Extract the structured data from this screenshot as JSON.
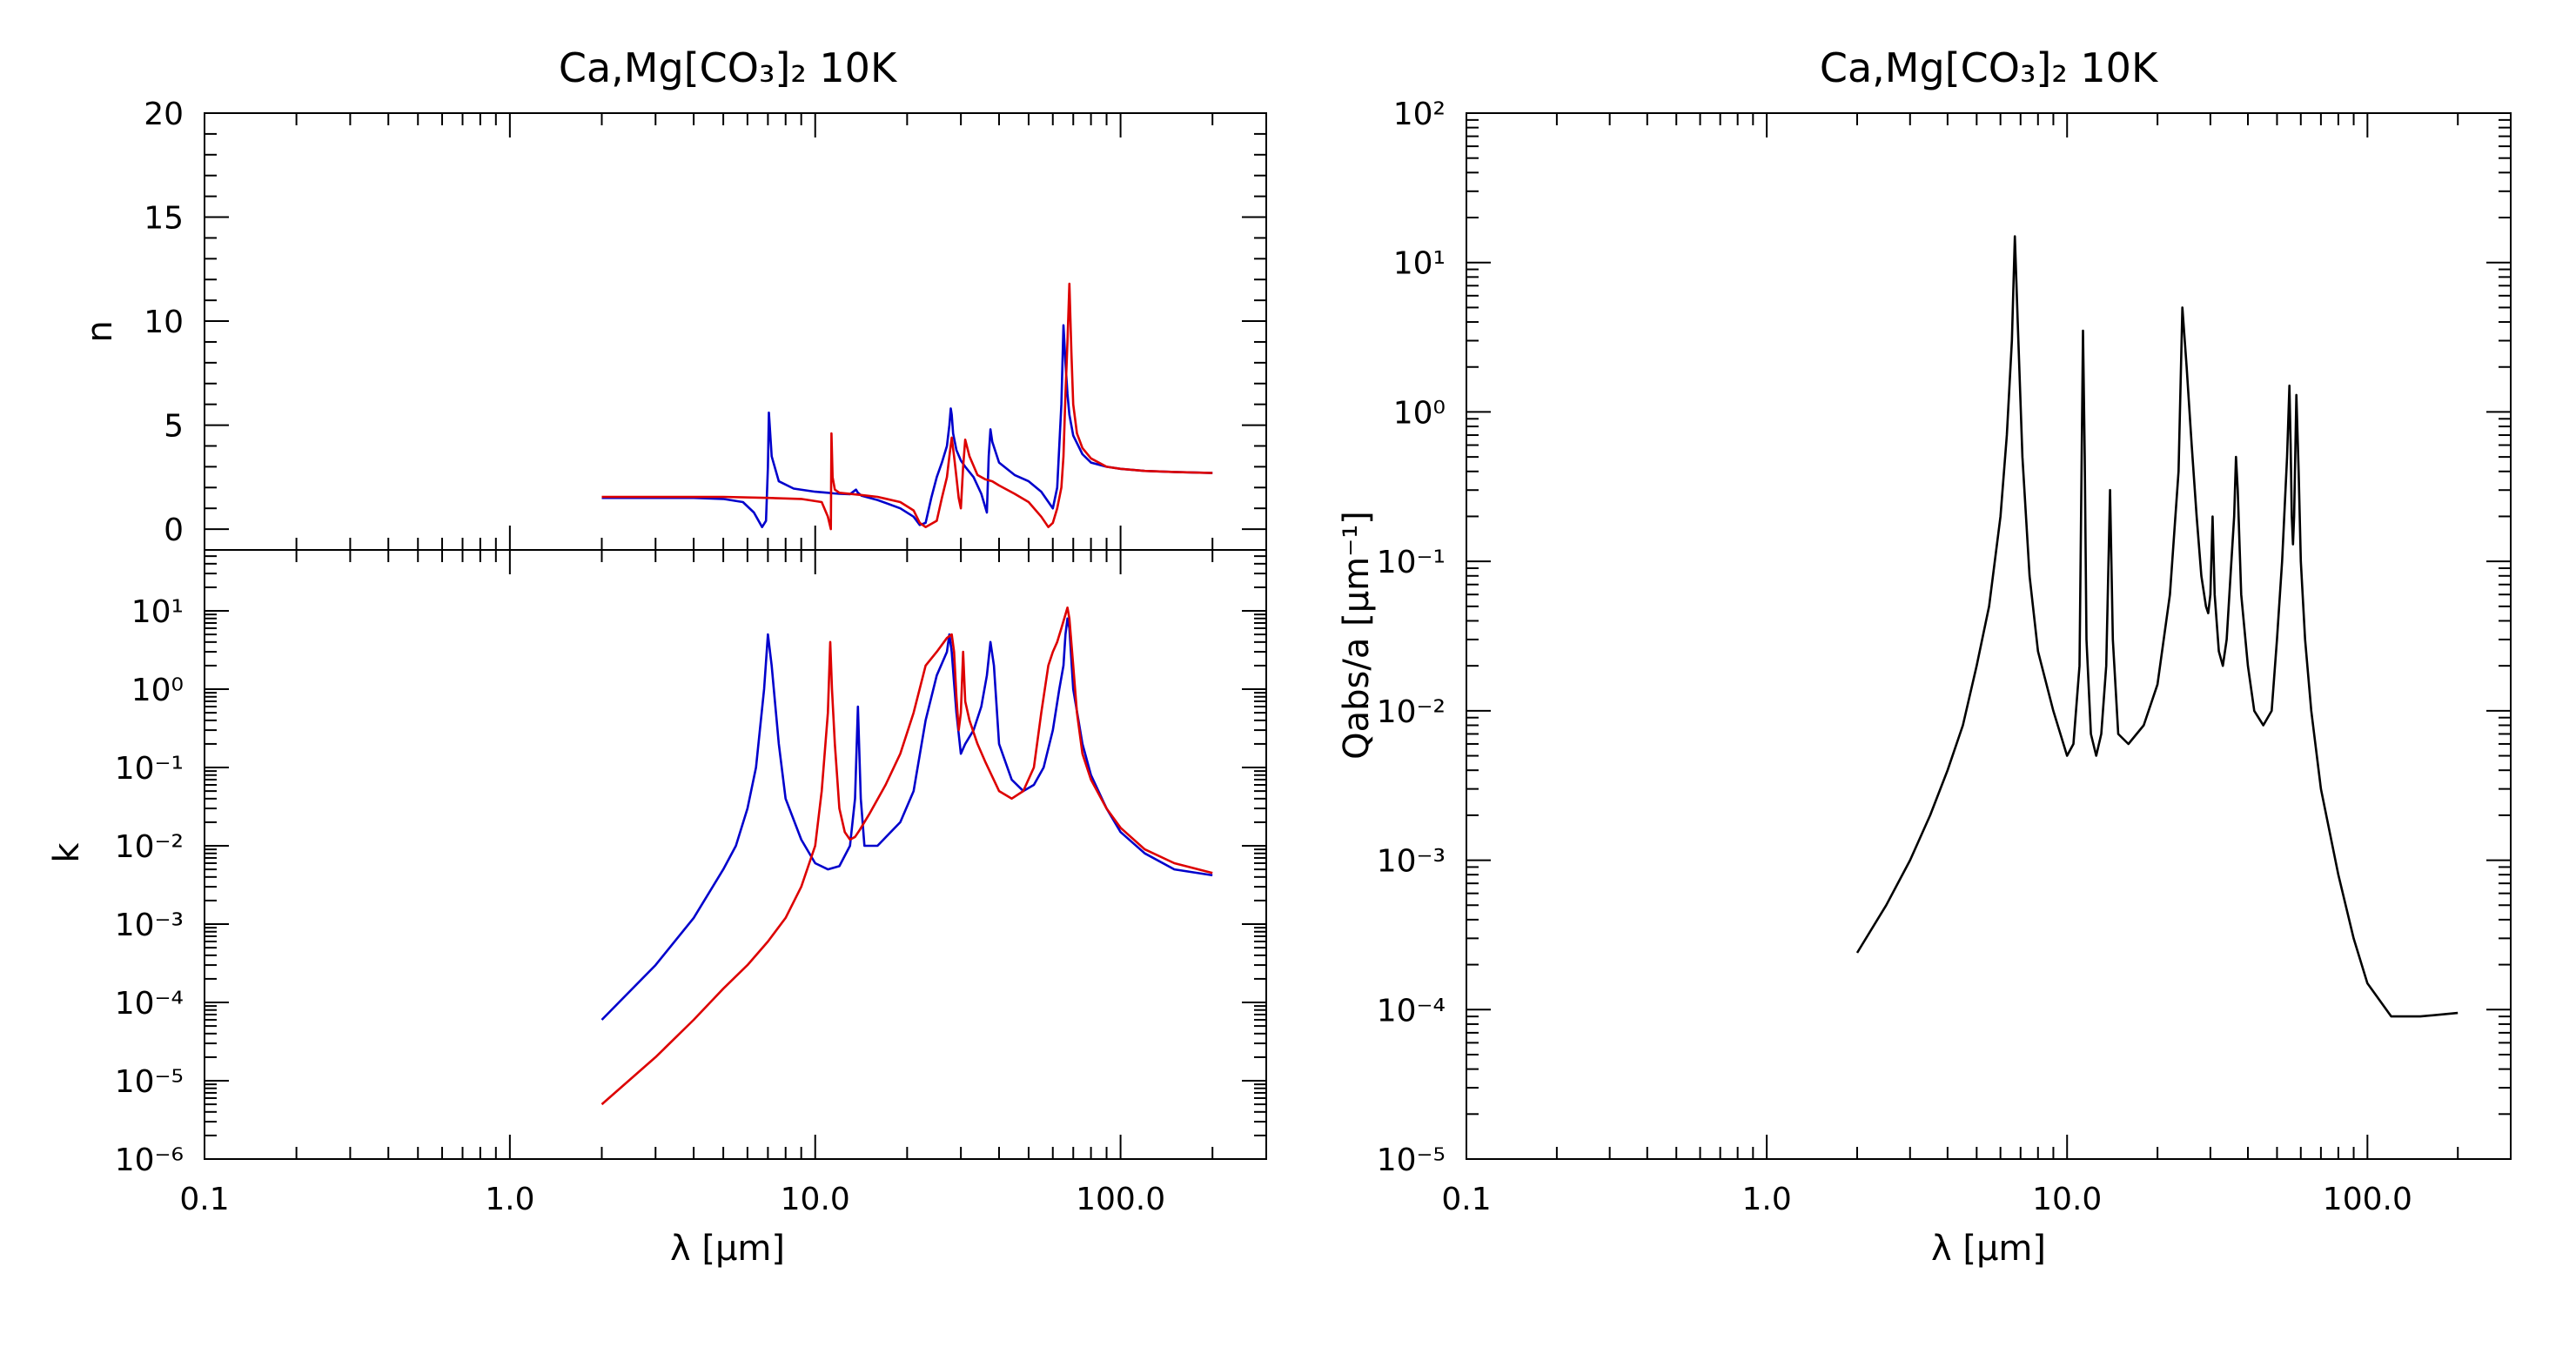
{
  "chart_data": [
    {
      "type": "line",
      "title": "Ca,Mg[CO₃]₂ 10K",
      "xlabel": "λ [μm]",
      "xscale": "log",
      "xlim": [
        0.1,
        300
      ],
      "xticks": [
        "0.1",
        "1.0",
        "10.0",
        "100.0"
      ],
      "panels": [
        {
          "ylabel": "n",
          "yscale": "linear",
          "ylim": [
            -1,
            20
          ],
          "yticks": [
            "0",
            "5",
            "10",
            "15",
            "20"
          ],
          "series": [
            {
              "color": "#0000cc",
              "x": [
                2,
                3,
                4,
                5,
                5.8,
                6.3,
                6.7,
                6.9,
                7.0,
                7.05,
                7.2,
                7.6,
                8.5,
                10,
                11,
                11.5,
                12,
                13,
                13.6,
                13.8,
                14.2,
                16,
                19,
                21,
                22,
                23,
                24,
                25,
                26,
                27,
                27.5,
                27.8,
                28,
                28.3,
                29,
                30,
                31,
                33,
                35,
                36.5,
                37,
                37.5,
                38,
                40,
                45,
                50,
                55,
                60,
                62,
                64,
                65,
                66,
                67,
                68,
                70,
                75,
                80,
                90,
                100,
                120,
                150,
                200
              ],
              "y": [
                1.5,
                1.5,
                1.5,
                1.45,
                1.3,
                0.8,
                0.1,
                0.4,
                3.0,
                5.6,
                3.5,
                2.3,
                1.95,
                1.8,
                1.75,
                1.72,
                1.7,
                1.68,
                1.9,
                1.75,
                1.6,
                1.4,
                1.0,
                0.6,
                0.2,
                0.3,
                1.5,
                2.5,
                3.2,
                4.0,
                5.0,
                5.8,
                5.5,
                4.6,
                3.8,
                3.3,
                3.0,
                2.5,
                1.7,
                0.8,
                3.5,
                4.8,
                4.2,
                3.2,
                2.6,
                2.3,
                1.8,
                1.0,
                2.0,
                6.0,
                9.8,
                8.0,
                6.5,
                5.5,
                4.5,
                3.6,
                3.2,
                3.0,
                2.9,
                2.8,
                2.75,
                2.7
              ]
            },
            {
              "color": "#dd0000",
              "x": [
                2,
                3,
                5,
                7,
                9,
                10.5,
                11,
                11.25,
                11.3,
                11.4,
                11.6,
                12,
                14,
                16,
                19,
                21,
                22,
                23,
                25,
                26,
                27,
                27.5,
                28,
                28.5,
                29,
                29.5,
                30,
                30.5,
                31,
                32,
                34,
                36,
                38,
                40,
                45,
                50,
                55,
                58,
                60,
                62,
                64,
                65,
                66,
                67,
                68,
                69,
                70,
                72,
                75,
                80,
                90,
                100,
                120,
                150,
                200
              ],
              "y": [
                1.55,
                1.55,
                1.55,
                1.5,
                1.45,
                1.3,
                0.6,
                0.0,
                4.6,
                2.5,
                1.9,
                1.75,
                1.65,
                1.55,
                1.3,
                0.9,
                0.3,
                0.1,
                0.4,
                1.5,
                2.5,
                3.5,
                4.4,
                3.5,
                2.5,
                1.5,
                1.0,
                3.0,
                4.3,
                3.5,
                2.6,
                2.4,
                2.3,
                2.1,
                1.7,
                1.3,
                0.6,
                0.1,
                0.3,
                1.0,
                2.0,
                3.5,
                6.5,
                9.0,
                11.8,
                8.5,
                6.0,
                4.6,
                3.9,
                3.4,
                3.0,
                2.9,
                2.8,
                2.75,
                2.7
              ]
            }
          ]
        },
        {
          "ylabel": "k",
          "yscale": "log",
          "ylim": [
            1e-06,
            60
          ],
          "yticks": [
            "10⁻⁶",
            "10⁻⁵",
            "10⁻⁴",
            "10⁻³",
            "10⁻²",
            "10⁻¹",
            "10⁰",
            "10¹"
          ],
          "series": [
            {
              "color": "#0000cc",
              "x": [
                2,
                3,
                4,
                5,
                5.5,
                6,
                6.4,
                6.8,
                7.0,
                7.2,
                7.6,
                8,
                9,
                10,
                11,
                12,
                13,
                13.5,
                13.8,
                14.1,
                14.5,
                16,
                19,
                21,
                23,
                25,
                27,
                27.5,
                28,
                28.5,
                29,
                30,
                31,
                33,
                35,
                36.5,
                37.5,
                38.5,
                40,
                44,
                48,
                52,
                56,
                60,
                63,
                65,
                66,
                67,
                68,
                70,
                75,
                80,
                90,
                100,
                120,
                150,
                200
              ],
              "y": [
                6e-05,
                0.0003,
                0.0012,
                0.005,
                0.01,
                0.03,
                0.1,
                1.0,
                5.0,
                2.0,
                0.2,
                0.04,
                0.012,
                0.006,
                0.005,
                0.0055,
                0.01,
                0.04,
                0.6,
                0.04,
                0.01,
                0.01,
                0.02,
                0.05,
                0.4,
                1.5,
                3.0,
                5.0,
                3.0,
                1.2,
                0.5,
                0.15,
                0.2,
                0.3,
                0.6,
                1.5,
                4.0,
                2.0,
                0.2,
                0.07,
                0.05,
                0.06,
                0.1,
                0.3,
                1.0,
                2.0,
                5.0,
                8.0,
                6.0,
                1.0,
                0.2,
                0.08,
                0.03,
                0.015,
                0.008,
                0.005,
                0.0042
              ]
            },
            {
              "color": "#dd0000",
              "x": [
                2,
                3,
                4,
                5,
                6,
                7,
                8,
                9,
                10,
                10.5,
                11,
                11.2,
                11.35,
                11.6,
                12,
                12.5,
                13,
                13.5,
                14,
                15,
                17,
                19,
                21,
                23,
                25,
                27,
                28,
                28.5,
                29,
                29.5,
                30,
                30.5,
                31,
                32,
                34,
                36,
                40,
                44,
                48,
                52,
                55,
                58,
                60,
                62,
                64,
                66,
                67,
                68,
                70,
                72,
                75,
                80,
                90,
                100,
                120,
                150,
                200
              ],
              "y": [
                5e-06,
                2e-05,
                6e-05,
                0.00015,
                0.0003,
                0.0006,
                0.0012,
                0.003,
                0.01,
                0.05,
                0.5,
                4.0,
                1.0,
                0.2,
                0.03,
                0.015,
                0.012,
                0.013,
                0.016,
                0.025,
                0.06,
                0.15,
                0.5,
                2.0,
                3.0,
                4.5,
                5.0,
                3.0,
                0.8,
                0.3,
                0.5,
                3.0,
                0.7,
                0.4,
                0.2,
                0.12,
                0.05,
                0.04,
                0.05,
                0.1,
                0.5,
                2.0,
                3.0,
                4.0,
                6.0,
                9.0,
                11.0,
                8.0,
                2.0,
                0.5,
                0.15,
                0.07,
                0.03,
                0.017,
                0.009,
                0.006,
                0.0045
              ]
            }
          ]
        }
      ]
    },
    {
      "type": "line",
      "title": "Ca,Mg[CO₃]₂ 10K",
      "xlabel": "λ [μm]",
      "xscale": "log",
      "xlim": [
        0.1,
        300
      ],
      "xticks": [
        "0.1",
        "1.0",
        "10.0",
        "100.0"
      ],
      "ylabel": "Qabs/a [μm⁻¹]",
      "yscale": "log",
      "ylim": [
        1e-05,
        100
      ],
      "yticks": [
        "10⁻⁵",
        "10⁻⁴",
        "10⁻³",
        "10⁻²",
        "10⁻¹",
        "10⁰",
        "10¹",
        "10²"
      ],
      "series": [
        {
          "color": "#000000",
          "x": [
            2,
            2.5,
            3,
            3.5,
            4,
            4.5,
            5,
            5.5,
            6,
            6.3,
            6.55,
            6.7,
            6.85,
            7.1,
            7.5,
            8,
            9,
            10,
            10.5,
            11,
            11.3,
            11.45,
            11.6,
            12,
            12.5,
            13,
            13.5,
            13.9,
            14.2,
            14.8,
            16,
            18,
            20,
            22,
            23.5,
            24.2,
            25,
            26,
            27,
            28,
            29,
            29.5,
            30,
            30.5,
            31,
            32,
            33,
            34,
            35,
            36,
            36.5,
            37,
            38,
            40,
            42,
            45,
            48,
            50,
            52,
            54,
            55,
            55.5,
            56,
            56.5,
            57,
            58,
            59,
            60,
            62,
            65,
            70,
            80,
            90,
            100,
            120,
            150,
            200
          ],
          "y": [
            0.00024,
            0.0005,
            0.001,
            0.002,
            0.004,
            0.008,
            0.02,
            0.05,
            0.2,
            0.7,
            3.0,
            15,
            4.0,
            0.5,
            0.08,
            0.025,
            0.01,
            0.005,
            0.006,
            0.02,
            3.5,
            0.5,
            0.03,
            0.007,
            0.005,
            0.007,
            0.02,
            0.3,
            0.03,
            0.007,
            0.006,
            0.008,
            0.015,
            0.06,
            0.4,
            5.0,
            2.0,
            0.6,
            0.2,
            0.08,
            0.05,
            0.045,
            0.06,
            0.2,
            0.06,
            0.025,
            0.02,
            0.03,
            0.08,
            0.2,
            0.5,
            0.3,
            0.06,
            0.02,
            0.01,
            0.008,
            0.01,
            0.03,
            0.1,
            0.5,
            1.5,
            0.6,
            0.2,
            0.13,
            0.2,
            1.3,
            0.4,
            0.1,
            0.03,
            0.01,
            0.003,
            0.0008,
            0.0003,
            0.00015,
            9e-05,
            9e-05,
            9.5e-05
          ]
        }
      ]
    }
  ]
}
